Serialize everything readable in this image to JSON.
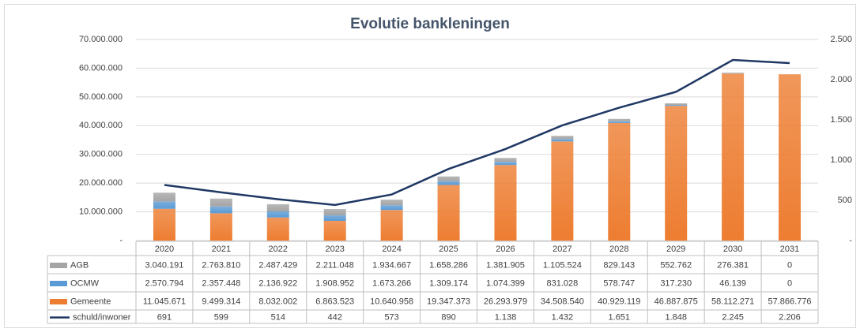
{
  "chart_data": {
    "type": "bar",
    "title": "Evolutie bankleningen",
    "categories": [
      "2020",
      "2021",
      "2022",
      "2023",
      "2024",
      "2025",
      "2026",
      "2027",
      "2028",
      "2029",
      "2030",
      "2031"
    ],
    "series": [
      {
        "name": "AGB",
        "color": "#a5a5a5",
        "values": [
          3040191,
          2763810,
          2487429,
          2211048,
          1934667,
          1658286,
          1381905,
          1105524,
          829143,
          552762,
          276381,
          0
        ],
        "value_labels": [
          "3.040.191",
          "2.763.810",
          "2.487.429",
          "2.211.048",
          "1.934.667",
          "1.658.286",
          "1.381.905",
          "1.105.524",
          "829.143",
          "552.762",
          "276.381",
          "0"
        ]
      },
      {
        "name": "OCMW",
        "color": "#5b9bd5",
        "values": [
          2570794,
          2357448,
          2136922,
          1908952,
          1673266,
          1309174,
          1074399,
          831028,
          578747,
          317230,
          46139,
          0
        ],
        "value_labels": [
          "2.570.794",
          "2.357.448",
          "2.136.922",
          "1.908.952",
          "1.673.266",
          "1.309.174",
          "1.074.399",
          "831.028",
          "578.747",
          "317.230",
          "46.139",
          "0"
        ]
      },
      {
        "name": "Gemeente",
        "color": "#ed7d31",
        "values": [
          11045671,
          9499314,
          8032002,
          6863523,
          10640958,
          19347373,
          26293979,
          34508540,
          40929119,
          46887875,
          58112271,
          57866776
        ],
        "value_labels": [
          "11.045.671",
          "9.499.314",
          "8.032.002",
          "6.863.523",
          "10.640.958",
          "19.347.373",
          "26.293.979",
          "34.508.540",
          "40.929.119",
          "46.887.875",
          "58.112.271",
          "57.866.776"
        ]
      },
      {
        "name": "schuld/inwoner",
        "type": "line",
        "axis": "y2",
        "color": "#1f3864",
        "values": [
          691,
          599,
          514,
          442,
          573,
          890,
          1138,
          1432,
          1651,
          1848,
          2245,
          2206
        ],
        "value_labels": [
          "691",
          "599",
          "514",
          "442",
          "573",
          "890",
          "1.138",
          "1.432",
          "1.651",
          "1.848",
          "2.245",
          "2.206"
        ]
      }
    ],
    "ylim": [
      0,
      70000000
    ],
    "yticks": [
      {
        "value": 0,
        "label": "-"
      },
      {
        "value": 10000000,
        "label": "10.000.000"
      },
      {
        "value": 20000000,
        "label": "20.000.000"
      },
      {
        "value": 30000000,
        "label": "30.000.000"
      },
      {
        "value": 40000000,
        "label": "40.000.000"
      },
      {
        "value": 50000000,
        "label": "50.000.000"
      },
      {
        "value": 60000000,
        "label": "60.000.000"
      },
      {
        "value": 70000000,
        "label": "70.000.000"
      }
    ],
    "y2lim": [
      0,
      2500
    ],
    "y2ticks": [
      {
        "value": 0,
        "label": "-"
      },
      500,
      {
        "value": 1000,
        "label": "1.000"
      },
      {
        "value": 1500,
        "label": "1.500"
      },
      {
        "value": 2000,
        "label": "2.000"
      },
      {
        "value": 2500,
        "label": "2.500"
      }
    ],
    "grid": true
  }
}
